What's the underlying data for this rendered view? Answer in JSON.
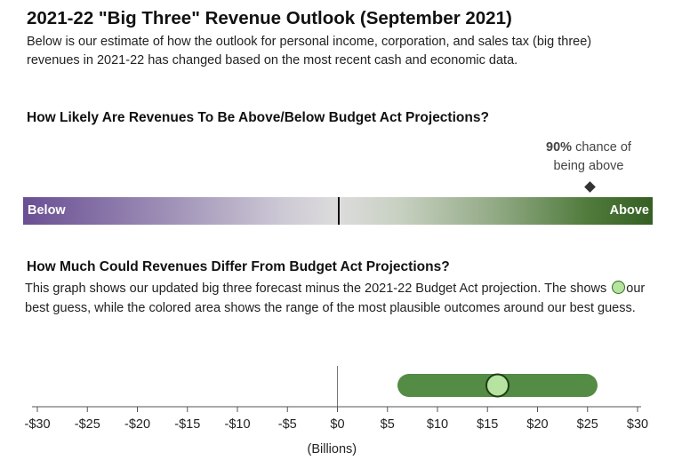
{
  "title": "2021-22 \"Big Three\" Revenue Outlook (September 2021)",
  "intro": "Below is our estimate of how the outlook for personal income, corporation, and sales tax (big three) revenues in 2021-22 has changed based on the most recent cash and economic data.",
  "likelihood": {
    "heading": "How Likely Are Revenues To Be Above/Below Budget Act Projections?",
    "callout_percent": "90%",
    "callout_line1_rest": " chance of",
    "callout_line2": "being above",
    "probability_above": 0.9,
    "below_label": "Below",
    "above_label": "Above",
    "colors": {
      "below": "#6a4f93",
      "neutral": "#dcdcdc",
      "above": "#355f23"
    }
  },
  "difference": {
    "heading": "How Much Could Revenues Differ From Budget Act Projections?",
    "text_part1": "This graph shows our updated big three forecast minus the 2021-22 Budget Act projection. The shows ",
    "text_icon": "circle-icon",
    "text_part2": "our best guess, while the colored area shows the range of the most plausible outcomes around our best guess."
  },
  "chart_data": {
    "type": "range",
    "xlabel": "(Billions)",
    "xlim": [
      -30,
      30
    ],
    "ticks": [
      -30,
      -25,
      -20,
      -15,
      -10,
      -5,
      0,
      5,
      10,
      15,
      20,
      25,
      30
    ],
    "tick_labels": [
      "-$30",
      "-$25",
      "-$20",
      "-$15",
      "-$10",
      "-$5",
      "$0",
      "$5",
      "$10",
      "$15",
      "$20",
      "$25",
      "$30"
    ],
    "range_low": 6,
    "range_high": 26,
    "best_guess": 16,
    "colors": {
      "range": "#548b45",
      "best_guess": "#b6e3a0",
      "best_guess_stroke": "#1f3d15",
      "zero_line": "#777777",
      "axis": "#555555"
    }
  }
}
